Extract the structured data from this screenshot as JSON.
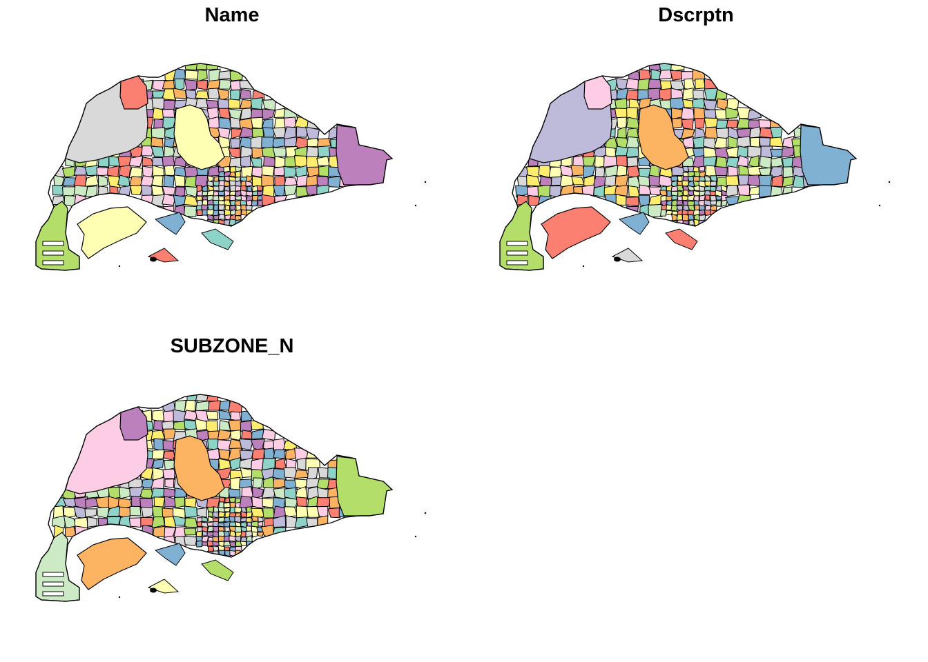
{
  "panels": [
    {
      "title": "Name",
      "palette": [
        "#8DD3C7",
        "#FFFFB3",
        "#BEBADA",
        "#FB8072",
        "#80B1D3",
        "#FDB462",
        "#B3DE69",
        "#FCCDE5",
        "#D9D9D9",
        "#BC80BD",
        "#CCEBC5",
        "#FFED6F"
      ],
      "seed": 7,
      "big": {
        "west": "#D9D9D9",
        "nw": "#FB8072",
        "central": "#FFFFB3",
        "east": "#BC80BD",
        "south_island": "#FFFFB3",
        "southwest": "#B3DE69"
      }
    },
    {
      "title": "Dscrptn",
      "palette": [
        "#8DD3C7",
        "#FFFFB3",
        "#BEBADA",
        "#FB8072",
        "#80B1D3",
        "#FDB462",
        "#B3DE69",
        "#FCCDE5",
        "#D9D9D9",
        "#BC80BD",
        "#CCEBC5",
        "#FFED6F"
      ],
      "seed": 23,
      "big": {
        "west": "#BEBADA",
        "nw": "#FCCDE5",
        "central": "#FDB462",
        "east": "#80B1D3",
        "south_island": "#FB8072",
        "southwest": "#B3DE69"
      }
    },
    {
      "title": "SUBZONE_N",
      "palette": [
        "#8DD3C7",
        "#FFFFB3",
        "#BEBADA",
        "#FB8072",
        "#80B1D3",
        "#FDB462",
        "#B3DE69",
        "#FCCDE5",
        "#D9D9D9",
        "#BC80BD",
        "#CCEBC5",
        "#FFED6F"
      ],
      "seed": 41,
      "big": {
        "west": "#FCCDE5",
        "nw": "#BC80BD",
        "central": "#FDB462",
        "east": "#B3DE69",
        "south_island": "#FDB462",
        "southwest": "#CCEBC5"
      }
    }
  ]
}
